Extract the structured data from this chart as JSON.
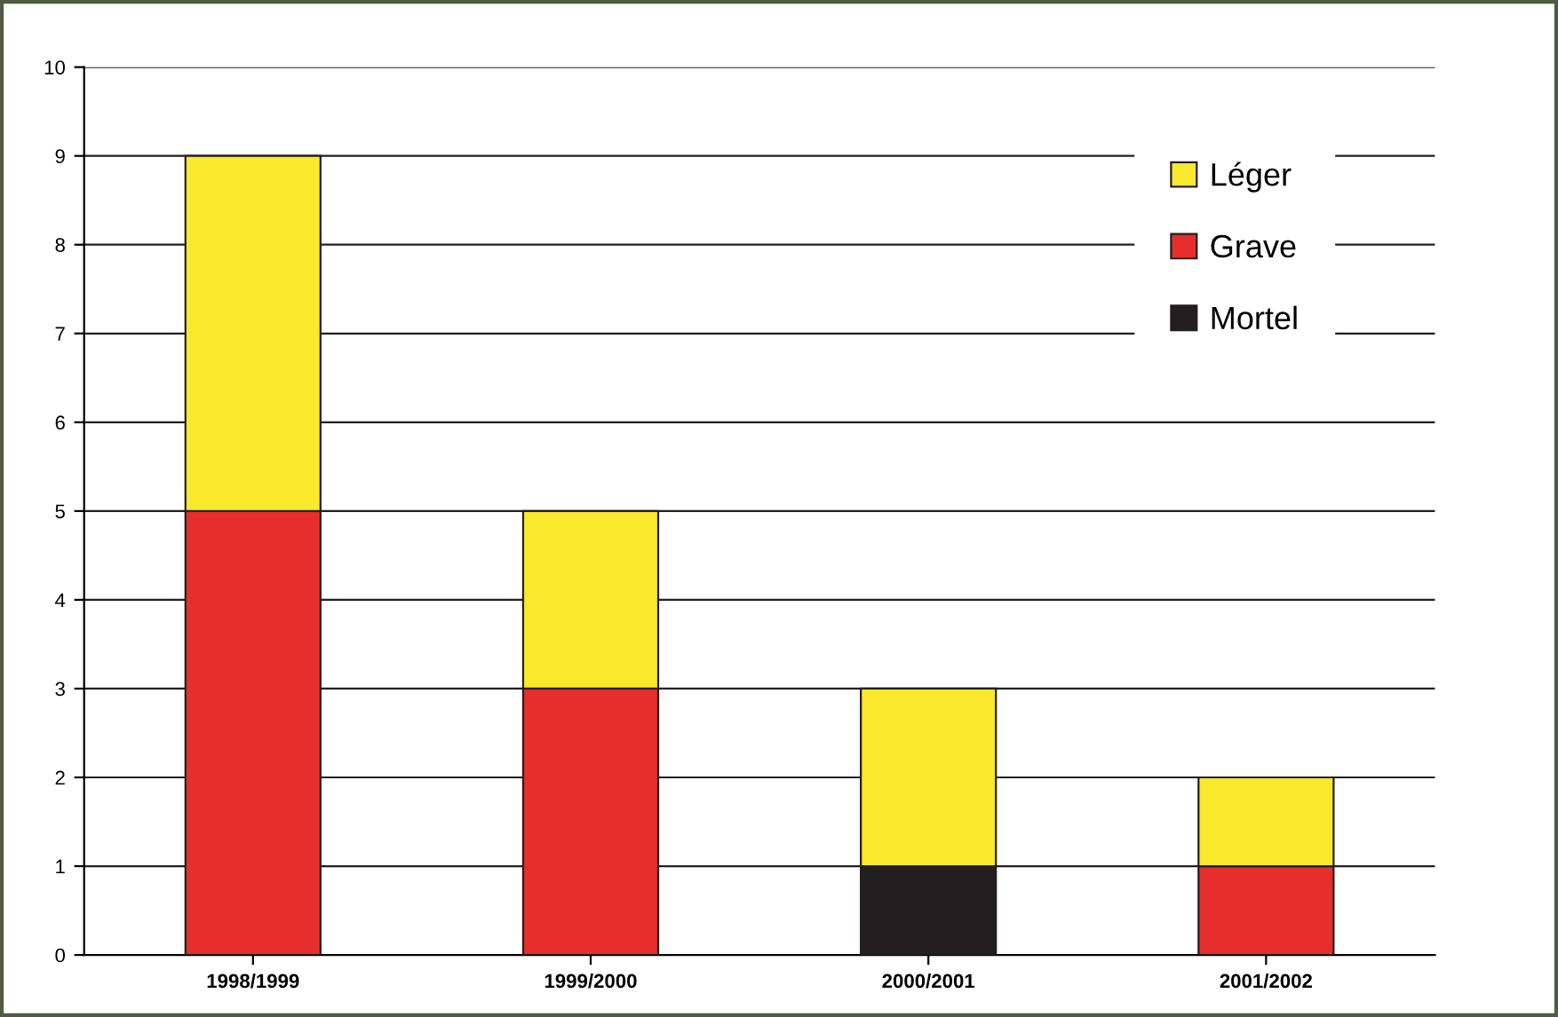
{
  "chart_data": {
    "type": "bar",
    "stacked": true,
    "categories": [
      "1998/1999",
      "1999/2000",
      "2000/2001",
      "2001/2002"
    ],
    "series": [
      {
        "name": "Mortel",
        "color": "#231f20",
        "values": [
          null,
          null,
          1,
          null
        ]
      },
      {
        "name": "Grave",
        "color": "#e62e2d",
        "values": [
          5,
          3,
          null,
          1
        ]
      },
      {
        "name": "Léger",
        "color": "#f9e82c",
        "values": [
          4,
          2,
          2,
          1
        ]
      }
    ],
    "ylim": [
      0,
      10
    ],
    "yticks": [
      0,
      1,
      2,
      3,
      4,
      5,
      6,
      7,
      8,
      9,
      10
    ],
    "grid": "y",
    "legend": "top right"
  }
}
